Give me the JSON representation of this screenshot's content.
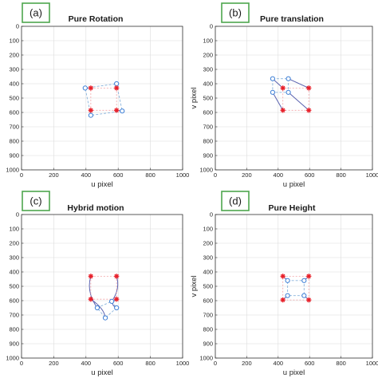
{
  "colors": {
    "ref": "#e8202a",
    "obs": "#3d7fd6",
    "traj": "#5a62b0",
    "box_dash": "#8ab4dc",
    "label_border": "#4ea64e",
    "grid": "#dcdcdc"
  },
  "chart_data": [
    {
      "type": "scatter",
      "panel_label": "(a)",
      "title": "Pure Rotation",
      "xlabel": "u pixel",
      "ylabel": "",
      "xlim": [
        0,
        1000
      ],
      "ylim": [
        0,
        1000
      ],
      "y_inverted": true,
      "grid": true,
      "xticks": [
        0,
        200,
        400,
        600,
        800,
        1000
      ],
      "yticks": [
        0,
        100,
        200,
        300,
        400,
        500,
        600,
        700,
        800,
        900,
        1000
      ],
      "series": [
        {
          "marker": "asterisk",
          "color": "#e8202a",
          "points": [
            [
              430,
              430
            ],
            [
              590,
              430
            ],
            [
              430,
              585
            ],
            [
              590,
              585
            ]
          ]
        },
        {
          "marker": "circle",
          "color": "#3d7fd6",
          "closed": true,
          "dashed": true,
          "points": [
            [
              395,
              430
            ],
            [
              590,
              400
            ],
            [
              625,
              590
            ],
            [
              430,
              620
            ]
          ]
        }
      ],
      "connectors": [
        [
          [
            395,
            430
          ],
          [
            430,
            430
          ]
        ],
        [
          [
            590,
            400
          ],
          [
            590,
            430
          ]
        ],
        [
          [
            625,
            590
          ],
          [
            590,
            585
          ]
        ],
        [
          [
            430,
            620
          ],
          [
            430,
            585
          ]
        ]
      ]
    },
    {
      "type": "scatter",
      "panel_label": "(b)",
      "title": "Pure translation",
      "xlabel": "u pixel",
      "ylabel": "v pixel",
      "xlim": [
        0,
        1000
      ],
      "ylim": [
        0,
        1000
      ],
      "y_inverted": true,
      "grid": true,
      "xticks": [
        0,
        200,
        400,
        600,
        800,
        1000
      ],
      "yticks": [
        0,
        100,
        200,
        300,
        400,
        500,
        600,
        700,
        800,
        900,
        1000
      ],
      "series": [
        {
          "marker": "asterisk",
          "color": "#e8202a",
          "points": [
            [
              430,
              430
            ],
            [
              595,
              430
            ],
            [
              430,
              585
            ],
            [
              595,
              585
            ]
          ]
        },
        {
          "marker": "circle",
          "color": "#3d7fd6",
          "closed": true,
          "dashed": true,
          "points": [
            [
              365,
              365
            ],
            [
              465,
              365
            ],
            [
              465,
              460
            ],
            [
              365,
              460
            ]
          ]
        }
      ],
      "connectors": [
        [
          [
            365,
            365
          ],
          [
            430,
            430
          ]
        ],
        [
          [
            465,
            365
          ],
          [
            595,
            430
          ]
        ],
        [
          [
            465,
            460
          ],
          [
            595,
            585
          ]
        ],
        [
          [
            365,
            460
          ],
          [
            430,
            585
          ]
        ]
      ]
    },
    {
      "type": "scatter",
      "panel_label": "(c)",
      "title": "Hybrid motion",
      "xlabel": "u pixel",
      "ylabel": "",
      "xlim": [
        0,
        1000
      ],
      "ylim": [
        0,
        1000
      ],
      "y_inverted": true,
      "grid": true,
      "xticks": [
        0,
        200,
        400,
        600,
        800,
        1000
      ],
      "yticks": [
        0,
        100,
        200,
        300,
        400,
        500,
        600,
        700,
        800,
        900,
        1000
      ],
      "series": [
        {
          "marker": "asterisk",
          "color": "#e8202a",
          "points": [
            [
              430,
              430
            ],
            [
              590,
              430
            ],
            [
              430,
              590
            ],
            [
              590,
              590
            ]
          ]
        },
        {
          "marker": "circle",
          "color": "#3d7fd6",
          "closed": true,
          "dashed": true,
          "points": [
            [
              470,
              650
            ],
            [
              560,
              605
            ],
            [
              590,
              650
            ],
            [
              520,
              720
            ]
          ]
        }
      ],
      "connectors": [
        [
          [
            430,
            430
          ],
          [
            470,
            650
          ]
        ],
        [
          [
            590,
            430
          ],
          [
            560,
            605
          ]
        ],
        [
          [
            590,
            590
          ],
          [
            590,
            650
          ]
        ],
        [
          [
            430,
            590
          ],
          [
            520,
            720
          ]
        ]
      ]
    },
    {
      "type": "scatter",
      "panel_label": "(d)",
      "title": "Pure Height",
      "xlabel": "u pixel",
      "ylabel": "v pixel",
      "xlim": [
        0,
        1000
      ],
      "ylim": [
        0,
        1000
      ],
      "y_inverted": true,
      "grid": true,
      "xticks": [
        0,
        200,
        400,
        600,
        800,
        1000
      ],
      "yticks": [
        0,
        100,
        200,
        300,
        400,
        500,
        600,
        700,
        800,
        900,
        1000
      ],
      "series": [
        {
          "marker": "asterisk",
          "color": "#e8202a",
          "points": [
            [
              430,
              430
            ],
            [
              595,
              430
            ],
            [
              430,
              595
            ],
            [
              595,
              595
            ]
          ]
        },
        {
          "marker": "circle",
          "color": "#3d7fd6",
          "closed": true,
          "dashed": true,
          "points": [
            [
              460,
              460
            ],
            [
              565,
              460
            ],
            [
              565,
              565
            ],
            [
              460,
              565
            ]
          ]
        }
      ],
      "connectors": [
        [
          [
            460,
            460
          ],
          [
            430,
            430
          ]
        ],
        [
          [
            565,
            460
          ],
          [
            595,
            430
          ]
        ],
        [
          [
            565,
            565
          ],
          [
            595,
            595
          ]
        ],
        [
          [
            460,
            565
          ],
          [
            430,
            595
          ]
        ]
      ]
    }
  ]
}
